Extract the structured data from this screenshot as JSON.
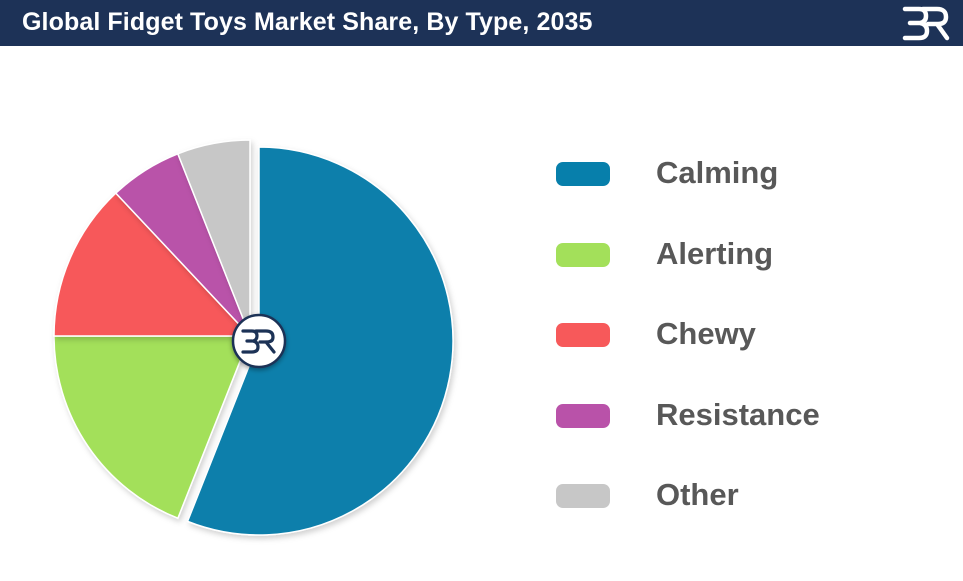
{
  "header": {
    "title": "Global Fidget Toys Market Share, By Type, 2035",
    "logo_icon": "brand-logo-icon"
  },
  "center_badge": {
    "icon": "brand-logo-badge-icon"
  },
  "colors": {
    "header_bg": "#1d3257",
    "calming": "#077fab",
    "alerting": "#a3e05a",
    "chewy": "#f7595a",
    "resistance": "#b952a9",
    "other": "#c7c7c7"
  },
  "chart_data": {
    "type": "pie",
    "title": "Global Fidget Toys Market Share, By Type, 2035",
    "categories": [
      "Calming",
      "Alerting",
      "Chewy",
      "Resistance",
      "Other"
    ],
    "values": [
      56,
      19,
      13,
      6,
      6
    ],
    "legend_position": "right",
    "exploded": true
  },
  "legend": {
    "items": [
      {
        "label": "Calming",
        "color": "#077fab"
      },
      {
        "label": "Alerting",
        "color": "#a3e05a"
      },
      {
        "label": "Chewy",
        "color": "#f7595a"
      },
      {
        "label": "Resistance",
        "color": "#b952a9"
      },
      {
        "label": "Other",
        "color": "#c7c7c7"
      }
    ]
  }
}
